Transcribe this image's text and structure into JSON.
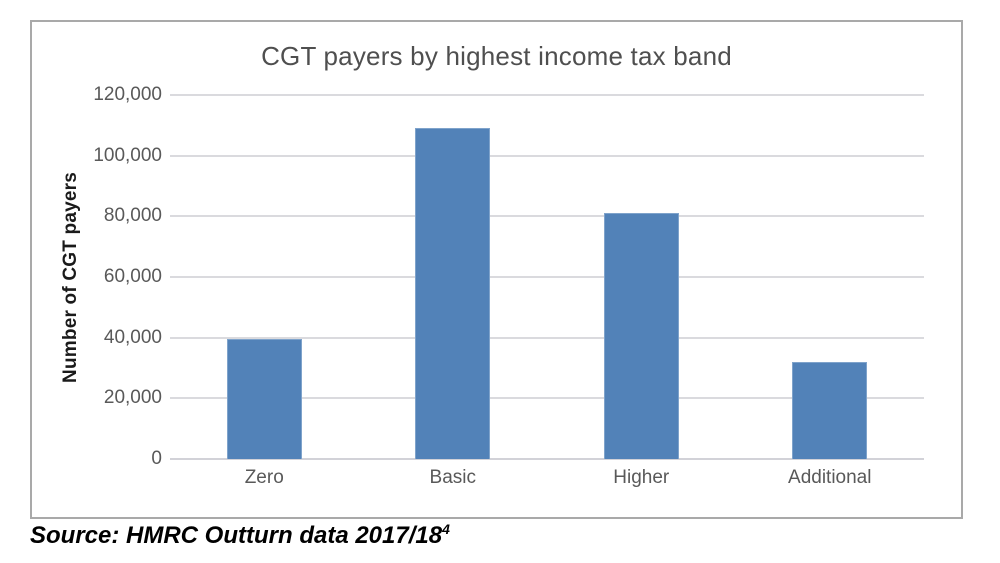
{
  "chart": {
    "title": "CGT payers by highest income tax band",
    "y_axis_title": "Number of CGT payers"
  },
  "source": {
    "text": "Source: HMRC Outturn data 2017/18",
    "superscript": "4"
  },
  "colors": {
    "bar": "#5282b8",
    "bar_edge": "#7fa3cb",
    "gridline": "#dadade",
    "frame_border": "#a9a9a9",
    "title_text": "#4f4f4f",
    "tick_text": "#595959",
    "axis_title_text": "#1a1a1a",
    "source_text": "#000000"
  },
  "chart_data": {
    "type": "bar",
    "title": "CGT payers by highest income tax band",
    "categories": [
      "Zero",
      "Basic",
      "Higher",
      "Additional"
    ],
    "values": [
      39500,
      109000,
      81000,
      32000
    ],
    "xlabel": "",
    "ylabel": "Number of CGT payers",
    "ylim": [
      0,
      120000
    ],
    "ytick_interval": 20000,
    "ytick_labels": [
      "0",
      "20,000",
      "40,000",
      "60,000",
      "80,000",
      "100,000",
      "120,000"
    ],
    "grid": true,
    "legend": false,
    "annotation": "Source: HMRC Outturn data 2017/18⁴"
  }
}
